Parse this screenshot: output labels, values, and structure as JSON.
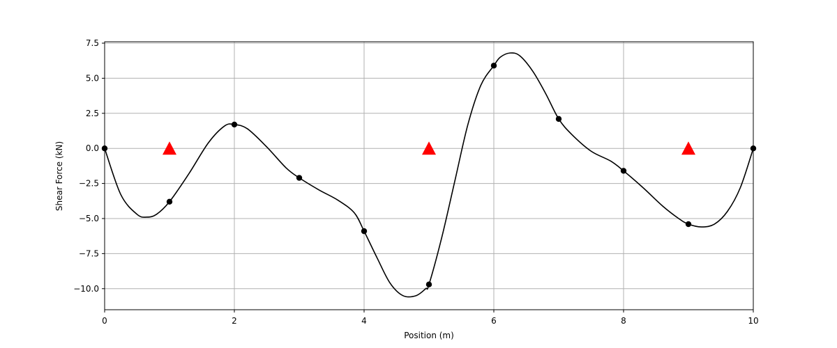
{
  "chart_data": {
    "type": "line",
    "title": "",
    "xlabel": "Position (m)",
    "ylabel": "Shear Force (kN)",
    "xlim": [
      0,
      10
    ],
    "ylim": [
      -11.5,
      7.6
    ],
    "grid": true,
    "x_ticks": [
      0,
      2,
      4,
      6,
      8,
      10
    ],
    "x_tick_labels": [
      "0",
      "2",
      "4",
      "6",
      "8",
      "10"
    ],
    "y_ticks": [
      7.5,
      5.0,
      2.5,
      0.0,
      -2.5,
      -5.0,
      -7.5,
      -10.0
    ],
    "y_tick_labels": [
      "7.5",
      "5.0",
      "2.5",
      "0.0",
      "−2.5",
      "−5.0",
      "−7.5",
      "−10.0"
    ],
    "series": [
      {
        "role": "smooth shear force curve",
        "color": "#000000",
        "x": [
          0,
          0.25,
          0.5,
          0.65,
          0.8,
          1.0,
          1.3,
          1.6,
          1.85,
          2.0,
          2.2,
          2.5,
          2.8,
          3.0,
          3.3,
          3.6,
          3.85,
          4.0,
          4.2,
          4.4,
          4.6,
          4.8,
          4.95,
          5.0,
          5.2,
          5.4,
          5.6,
          5.8,
          6.0,
          6.1,
          6.25,
          6.4,
          6.6,
          6.8,
          7.0,
          7.2,
          7.5,
          7.8,
          8.0,
          8.3,
          8.6,
          8.85,
          9.0,
          9.2,
          9.4,
          9.6,
          9.8,
          10.0
        ],
        "y": [
          0.0,
          -3.3,
          -4.7,
          -4.9,
          -4.7,
          -3.8,
          -1.8,
          0.4,
          1.6,
          1.7,
          1.4,
          0.1,
          -1.4,
          -2.1,
          -2.95,
          -3.7,
          -4.6,
          -5.9,
          -7.8,
          -9.6,
          -10.5,
          -10.5,
          -10.0,
          -9.7,
          -6.3,
          -2.3,
          1.7,
          4.5,
          5.9,
          6.5,
          6.8,
          6.6,
          5.5,
          3.9,
          2.1,
          1.0,
          -0.2,
          -0.9,
          -1.6,
          -2.8,
          -4.1,
          -5.0,
          -5.4,
          -5.6,
          -5.4,
          -4.5,
          -2.8,
          0.0
        ]
      },
      {
        "role": "evaluation points",
        "marker": "circle",
        "color": "#000000",
        "x": [
          0,
          1,
          2,
          3,
          4,
          5,
          6,
          7,
          8,
          9,
          10
        ],
        "y": [
          0.0,
          -3.8,
          1.7,
          -2.1,
          -5.9,
          -9.7,
          5.9,
          2.1,
          -1.6,
          -5.4,
          0.0
        ]
      },
      {
        "role": "supports",
        "marker": "triangle",
        "color": "#ff0000",
        "x": [
          1,
          5,
          9
        ],
        "y": [
          0.0,
          0.0,
          0.0
        ]
      }
    ]
  }
}
